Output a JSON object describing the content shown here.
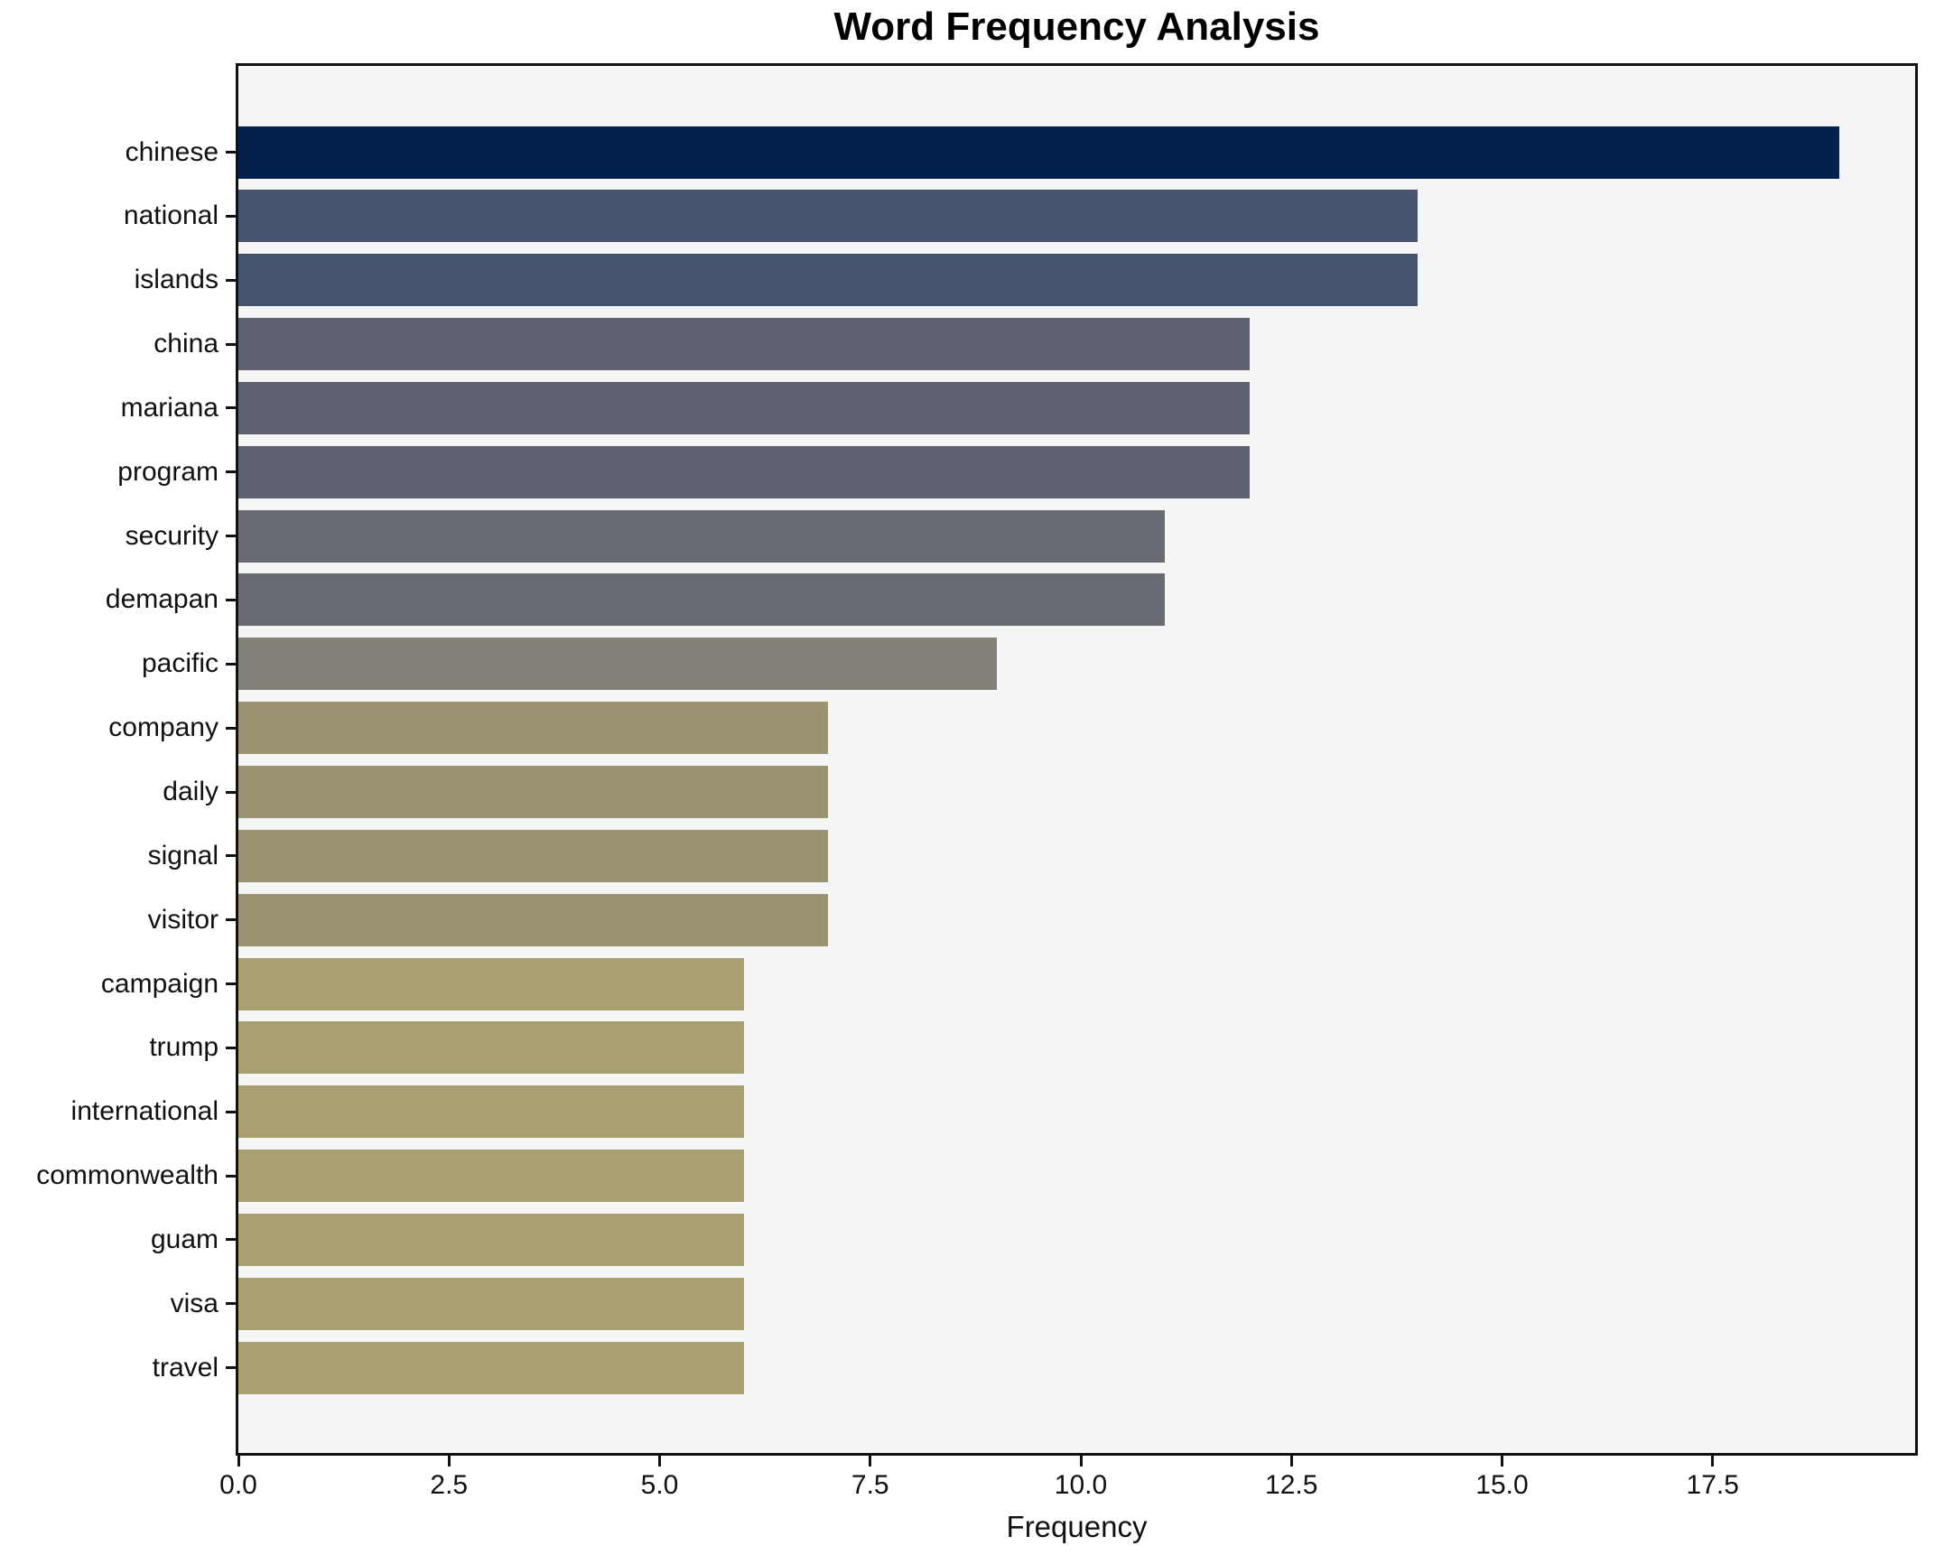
{
  "chart_data": {
    "type": "bar",
    "orientation": "horizontal",
    "title": "Word Frequency Analysis",
    "xlabel": "Frequency",
    "ylabel": "",
    "categories": [
      "chinese",
      "national",
      "islands",
      "china",
      "mariana",
      "program",
      "security",
      "demapan",
      "pacific",
      "company",
      "daily",
      "signal",
      "visitor",
      "campaign",
      "trump",
      "international",
      "commonwealth",
      "guam",
      "visa",
      "travel"
    ],
    "values": [
      19,
      14,
      14,
      12,
      12,
      12,
      11,
      11,
      9,
      7,
      7,
      7,
      7,
      6,
      6,
      6,
      6,
      6,
      6,
      6
    ],
    "bar_colors": [
      "#02214e",
      "#46546f",
      "#46546f",
      "#5d6170",
      "#5d6170",
      "#5d6170",
      "#696b72",
      "#696b72",
      "#838078",
      "#9b9372",
      "#9b9372",
      "#9b9372",
      "#9b9372",
      "#a9a071",
      "#a9a071",
      "#a9a071",
      "#a9a071",
      "#a9a071",
      "#a9a071",
      "#a9a071"
    ],
    "x_ticks": [
      0,
      2.5,
      5,
      7.5,
      10,
      12.5,
      15,
      17.5
    ],
    "x_tick_labels": [
      "0.0",
      "2.5",
      "5.0",
      "7.5",
      "10.0",
      "12.5",
      "15.0",
      "17.5"
    ],
    "xlim": [
      0,
      19.9
    ],
    "grid": false,
    "legend": null,
    "plot_bg": "#f5f5f6",
    "figure_bg": "#ffffff",
    "spine_color": "#111111",
    "text_color": "#111111"
  }
}
